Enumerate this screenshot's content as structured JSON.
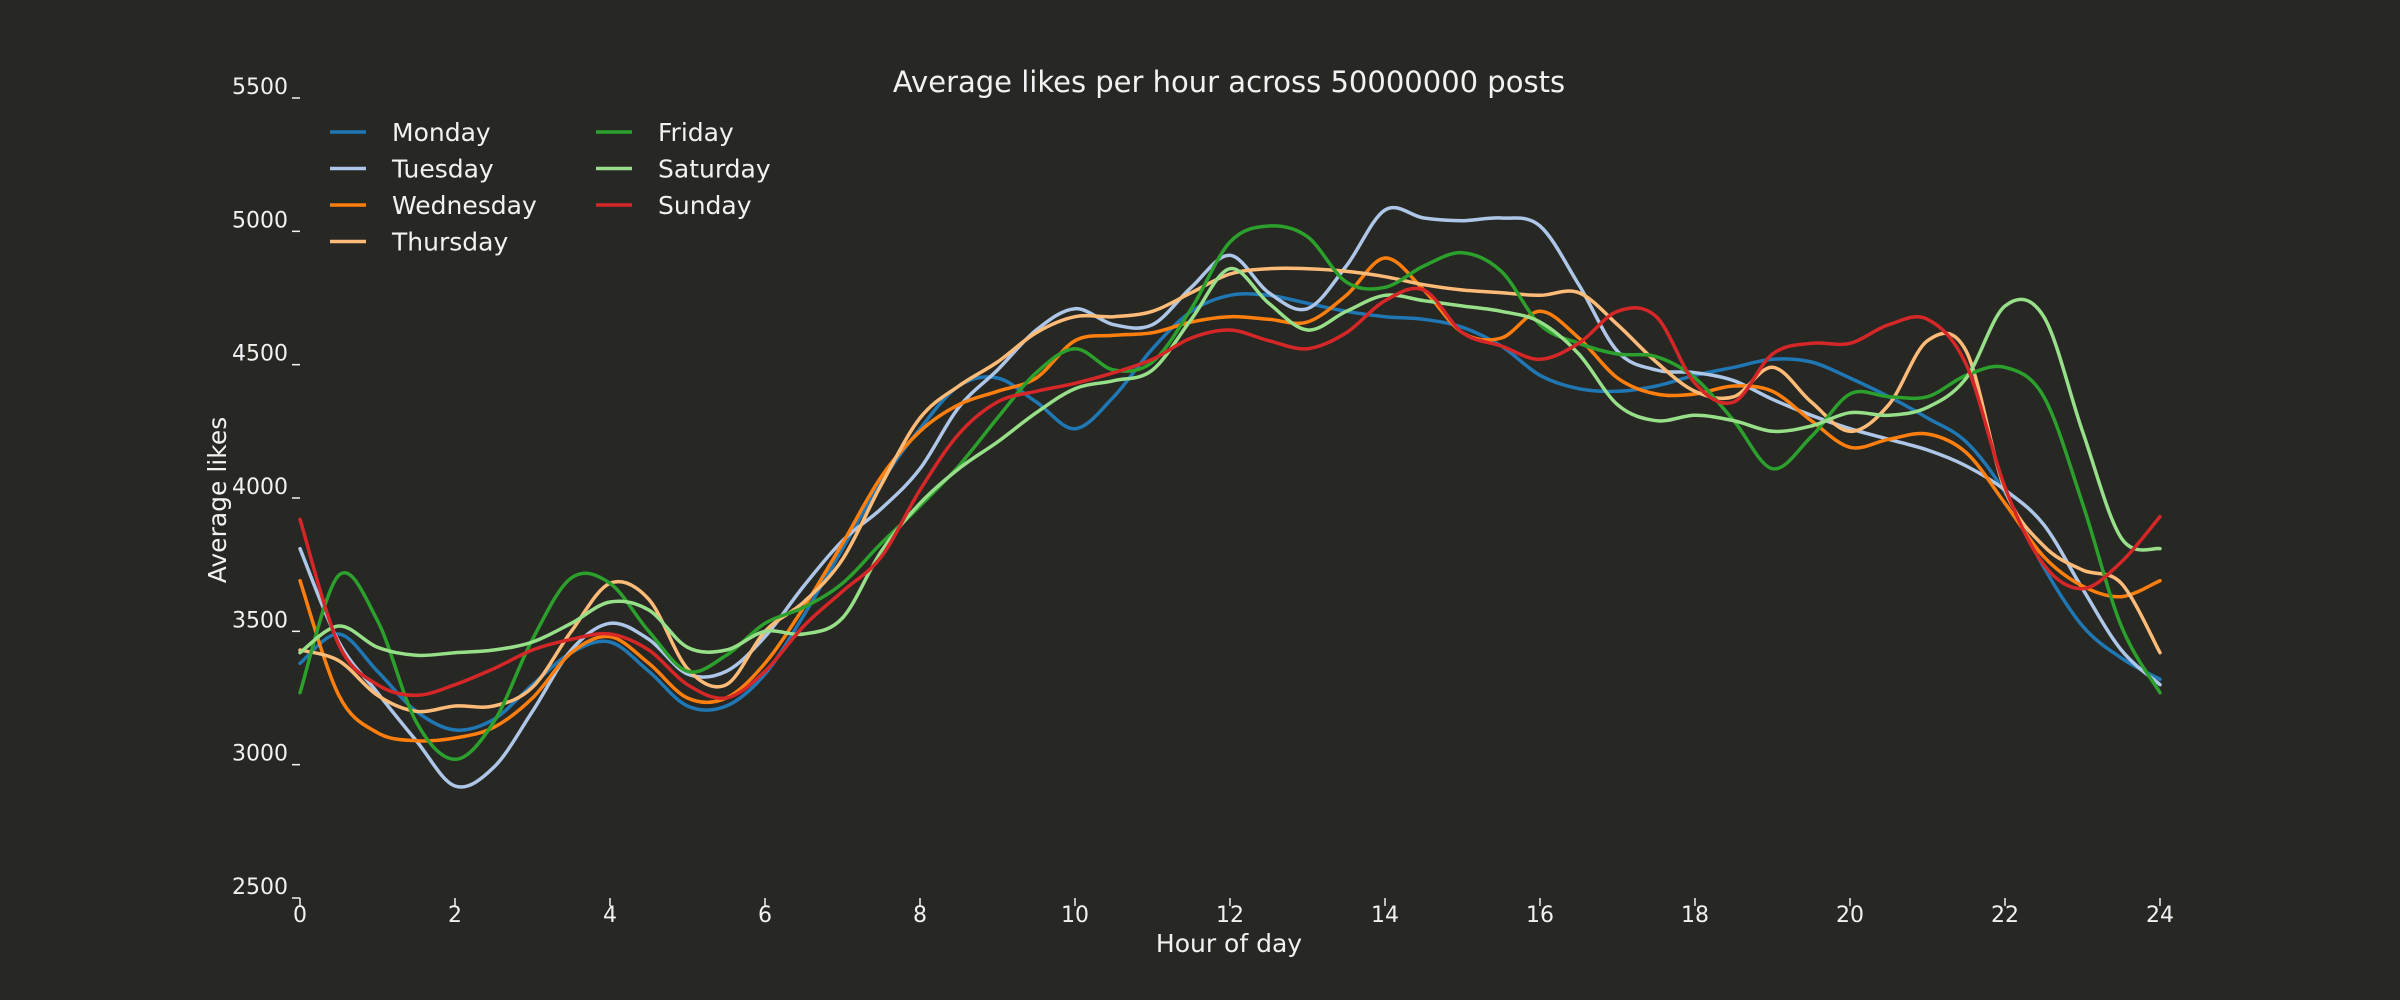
{
  "chart_data": {
    "type": "line",
    "title": "Average likes per hour across 50000000 posts",
    "xlabel": "Hour of day",
    "ylabel": "Average likes",
    "xlim": [
      0,
      24
    ],
    "ylim": [
      2500,
      5500
    ],
    "xticks": [
      0,
      2,
      4,
      6,
      8,
      10,
      12,
      14,
      16,
      18,
      20,
      22,
      24
    ],
    "yticks": [
      2500,
      3000,
      3500,
      4000,
      4500,
      5000,
      5500
    ],
    "grid": false,
    "background": "#272723",
    "legend_position": "top-left",
    "legend_columns": 2,
    "x": [
      0,
      0.5,
      1,
      1.5,
      2,
      2.5,
      3,
      3.5,
      4,
      4.5,
      5,
      5.5,
      6,
      6.5,
      7,
      7.5,
      8,
      8.5,
      9,
      9.5,
      10,
      10.5,
      11,
      11.5,
      12,
      12.5,
      13,
      13.5,
      14,
      14.5,
      15,
      15.5,
      16,
      16.5,
      17,
      17.5,
      18,
      18.5,
      19,
      19.5,
      20,
      20.5,
      21,
      21.5,
      22,
      22.5,
      23,
      23.5,
      24
    ],
    "series": [
      {
        "name": "Monday",
        "color": "#1f77b4",
        "values": [
          3380,
          3490,
          3350,
          3200,
          3130,
          3170,
          3300,
          3420,
          3460,
          3350,
          3220,
          3220,
          3340,
          3560,
          3810,
          4060,
          4260,
          4420,
          4450,
          4360,
          4260,
          4380,
          4560,
          4700,
          4760,
          4760,
          4730,
          4700,
          4680,
          4670,
          4640,
          4570,
          4460,
          4410,
          4400,
          4420,
          4460,
          4490,
          4520,
          4510,
          4450,
          4380,
          4300,
          4210,
          4020,
          3740,
          3520,
          3400,
          3320
        ]
      },
      {
        "name": "Tuesday",
        "color": "#aec7e8",
        "values": [
          3810,
          3460,
          3270,
          3090,
          2920,
          2990,
          3200,
          3430,
          3530,
          3470,
          3340,
          3350,
          3480,
          3670,
          3840,
          3960,
          4110,
          4340,
          4480,
          4630,
          4710,
          4650,
          4650,
          4790,
          4910,
          4770,
          4710,
          4870,
          5080,
          5050,
          5040,
          5050,
          5020,
          4800,
          4550,
          4480,
          4470,
          4440,
          4370,
          4310,
          4260,
          4220,
          4180,
          4120,
          4030,
          3900,
          3660,
          3430,
          3300
        ]
      },
      {
        "name": "Wednesday",
        "color": "#ff7f0e",
        "values": [
          3690,
          3260,
          3120,
          3090,
          3100,
          3140,
          3250,
          3420,
          3480,
          3380,
          3250,
          3250,
          3380,
          3590,
          3830,
          4080,
          4250,
          4350,
          4400,
          4450,
          4590,
          4610,
          4620,
          4660,
          4680,
          4670,
          4660,
          4760,
          4900,
          4780,
          4620,
          4600,
          4700,
          4600,
          4450,
          4390,
          4390,
          4420,
          4400,
          4290,
          4190,
          4220,
          4240,
          4170,
          3980,
          3780,
          3670,
          3630,
          3690
        ]
      },
      {
        "name": "Thursday",
        "color": "#ffbb78",
        "values": [
          3430,
          3390,
          3260,
          3200,
          3220,
          3220,
          3290,
          3500,
          3680,
          3620,
          3360,
          3300,
          3500,
          3610,
          3770,
          4050,
          4300,
          4420,
          4510,
          4620,
          4680,
          4680,
          4700,
          4770,
          4840,
          4860,
          4860,
          4850,
          4830,
          4800,
          4780,
          4770,
          4760,
          4770,
          4650,
          4510,
          4400,
          4380,
          4490,
          4360,
          4250,
          4350,
          4590,
          4550,
          4030,
          3820,
          3730,
          3680,
          3420
        ]
      },
      {
        "name": "Friday",
        "color": "#2ca02c",
        "values": [
          3270,
          3710,
          3540,
          3160,
          3020,
          3160,
          3470,
          3700,
          3680,
          3500,
          3350,
          3410,
          3530,
          3590,
          3680,
          3830,
          3970,
          4120,
          4300,
          4470,
          4560,
          4480,
          4510,
          4710,
          4960,
          5020,
          4980,
          4810,
          4790,
          4870,
          4920,
          4850,
          4650,
          4580,
          4540,
          4530,
          4450,
          4290,
          4110,
          4230,
          4390,
          4380,
          4380,
          4460,
          4490,
          4380,
          3980,
          3520,
          3270
        ]
      },
      {
        "name": "Saturday",
        "color": "#98df8a",
        "values": [
          3420,
          3520,
          3440,
          3410,
          3420,
          3430,
          3460,
          3530,
          3610,
          3580,
          3440,
          3430,
          3500,
          3490,
          3550,
          3800,
          3980,
          4110,
          4210,
          4320,
          4410,
          4440,
          4480,
          4670,
          4860,
          4730,
          4630,
          4700,
          4760,
          4740,
          4720,
          4700,
          4660,
          4540,
          4350,
          4290,
          4310,
          4290,
          4250,
          4270,
          4320,
          4310,
          4340,
          4450,
          4720,
          4680,
          4250,
          3850,
          3810
        ]
      },
      {
        "name": "Sunday",
        "color": "#d62728",
        "values": [
          3920,
          3450,
          3300,
          3260,
          3300,
          3360,
          3430,
          3470,
          3490,
          3430,
          3300,
          3250,
          3350,
          3520,
          3650,
          3780,
          4030,
          4240,
          4360,
          4400,
          4430,
          4470,
          4520,
          4600,
          4630,
          4590,
          4560,
          4620,
          4740,
          4780,
          4620,
          4570,
          4520,
          4580,
          4700,
          4680,
          4430,
          4360,
          4540,
          4580,
          4580,
          4650,
          4670,
          4500,
          4040,
          3750,
          3660,
          3760,
          3930
        ]
      }
    ]
  }
}
